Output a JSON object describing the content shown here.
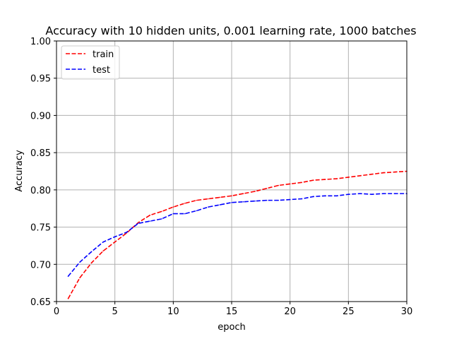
{
  "chart_data": {
    "type": "line",
    "title": "Accuracy with 10 hidden units, 0.001 learning rate, 1000 batches",
    "xlabel": "epoch",
    "ylabel": "Accuracy",
    "xlim": [
      0,
      30
    ],
    "ylim": [
      0.65,
      1.0
    ],
    "xticks": [
      0,
      5,
      10,
      15,
      20,
      25,
      30
    ],
    "xtick_labels": [
      "0",
      "5",
      "10",
      "15",
      "20",
      "25",
      "30"
    ],
    "yticks": [
      0.65,
      0.7,
      0.75,
      0.8,
      0.85,
      0.9,
      0.95,
      1.0
    ],
    "ytick_labels": [
      "0.65",
      "0.70",
      "0.75",
      "0.80",
      "0.85",
      "0.90",
      "0.95",
      "1.00"
    ],
    "grid": true,
    "legend_position": "top-left",
    "x": [
      1,
      2,
      3,
      4,
      5,
      6,
      7,
      8,
      9,
      10,
      11,
      12,
      13,
      14,
      15,
      16,
      17,
      18,
      19,
      20,
      21,
      22,
      23,
      24,
      25,
      26,
      27,
      28,
      29,
      30
    ],
    "series": [
      {
        "name": "train",
        "color": "#ff0000",
        "linestyle": "dashed",
        "values": [
          0.654,
          0.682,
          0.702,
          0.718,
          0.73,
          0.742,
          0.756,
          0.766,
          0.771,
          0.777,
          0.782,
          0.786,
          0.788,
          0.79,
          0.792,
          0.795,
          0.798,
          0.802,
          0.806,
          0.808,
          0.81,
          0.813,
          0.814,
          0.815,
          0.817,
          0.819,
          0.821,
          0.823,
          0.824,
          0.825
        ]
      },
      {
        "name": "test",
        "color": "#0000ff",
        "linestyle": "dashed",
        "values": [
          0.684,
          0.703,
          0.717,
          0.73,
          0.737,
          0.743,
          0.755,
          0.758,
          0.761,
          0.768,
          0.768,
          0.772,
          0.777,
          0.78,
          0.783,
          0.784,
          0.785,
          0.786,
          0.786,
          0.787,
          0.788,
          0.791,
          0.792,
          0.792,
          0.794,
          0.795,
          0.794,
          0.795,
          0.795,
          0.795
        ]
      }
    ]
  }
}
